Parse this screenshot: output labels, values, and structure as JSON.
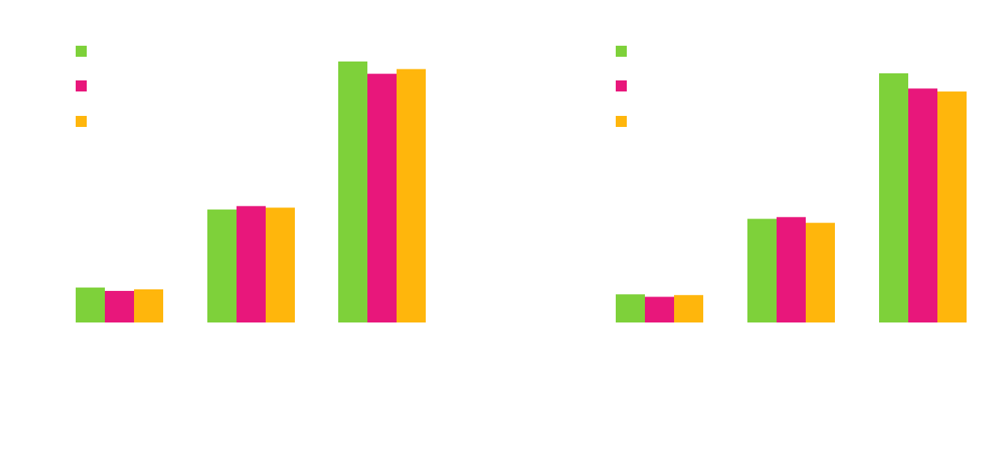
{
  "colors": {
    "background": "#ffffff",
    "green": "#7ed13a",
    "magenta": "#e8177b",
    "orange": "#ffb60c"
  },
  "chart_data": [
    {
      "type": "bar",
      "categories": [
        "",
        "",
        ""
      ],
      "series": [
        {
          "color": "#7ed13a",
          "values": [
            13.4,
            43.3,
            100
          ]
        },
        {
          "color": "#e8177b",
          "values": [
            12.1,
            44.6,
            95.3
          ]
        },
        {
          "color": "#ffb60c",
          "values": [
            12.7,
            44.0,
            97.1
          ]
        }
      ],
      "legend": "top-left",
      "ylim": [
        0,
        100
      ],
      "grid": false
    },
    {
      "type": "bar",
      "categories": [
        "",
        "",
        ""
      ],
      "series": [
        {
          "color": "#7ed13a",
          "values": [
            11.3,
            41.6,
            100
          ]
        },
        {
          "color": "#e8177b",
          "values": [
            10.3,
            42.3,
            93.9
          ]
        },
        {
          "color": "#ffb60c",
          "values": [
            11.0,
            40.0,
            92.7
          ]
        }
      ],
      "legend": "top-left",
      "ylim": [
        0,
        100
      ],
      "grid": false
    }
  ]
}
